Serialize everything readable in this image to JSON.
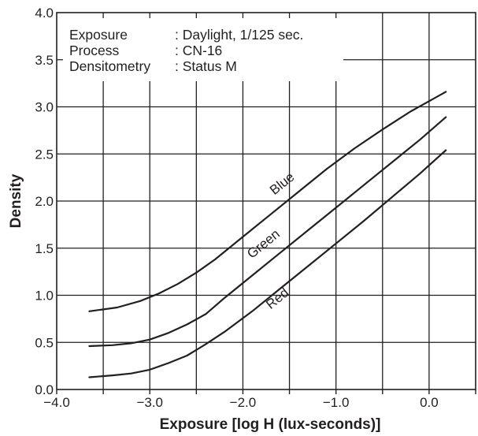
{
  "chart_data": {
    "type": "line",
    "xlabel": "Exposure [log H (lux-seconds)]",
    "ylabel": "Density",
    "xlim": [
      -4.0,
      0.5
    ],
    "ylim": [
      0.0,
      4.0
    ],
    "x_ticks": [
      -4.0,
      -3.0,
      -2.0,
      -1.0,
      0.0
    ],
    "x_tick_labels": [
      "−4.0",
      "−3.0",
      "−2.0",
      "−1.0",
      "0.0"
    ],
    "y_ticks": [
      0.0,
      0.5,
      1.0,
      1.5,
      2.0,
      2.5,
      3.0,
      3.5,
      4.0
    ],
    "y_tick_labels": [
      "0.0",
      "0.5",
      "1.0",
      "1.5",
      "2.0",
      "2.5",
      "3.0",
      "3.5",
      "4.0"
    ],
    "grid": true,
    "info": {
      "rows": [
        {
          "key": "Exposure",
          "value": ": Daylight, 1/125 sec."
        },
        {
          "key": "Process",
          "value": ": CN-16"
        },
        {
          "key": "Densitometry",
          "value": ": Status M"
        }
      ]
    },
    "series": [
      {
        "name": "Blue",
        "x": [
          -3.65,
          -3.35,
          -3.1,
          -2.9,
          -2.7,
          -2.5,
          -2.3,
          -2.0,
          -1.7,
          -1.4,
          -1.1,
          -0.8,
          -0.5,
          -0.2,
          0.0,
          0.18
        ],
        "y": [
          0.83,
          0.87,
          0.94,
          1.02,
          1.12,
          1.24,
          1.38,
          1.62,
          1.86,
          2.1,
          2.34,
          2.56,
          2.76,
          2.95,
          3.06,
          3.16
        ]
      },
      {
        "name": "Green",
        "x": [
          -3.65,
          -3.4,
          -3.2,
          -3.0,
          -2.8,
          -2.6,
          -2.4,
          -2.2,
          -1.9,
          -1.6,
          -1.3,
          -1.0,
          -0.7,
          -0.4,
          -0.1,
          0.18
        ],
        "y": [
          0.46,
          0.47,
          0.49,
          0.53,
          0.6,
          0.69,
          0.8,
          0.97,
          1.21,
          1.45,
          1.69,
          1.93,
          2.17,
          2.41,
          2.65,
          2.89
        ]
      },
      {
        "name": "Red",
        "x": [
          -3.65,
          -3.4,
          -3.2,
          -3.0,
          -2.8,
          -2.6,
          -2.4,
          -2.2,
          -1.9,
          -1.6,
          -1.3,
          -1.0,
          -0.7,
          -0.4,
          -0.1,
          0.18
        ],
        "y": [
          0.13,
          0.15,
          0.17,
          0.21,
          0.28,
          0.36,
          0.48,
          0.61,
          0.83,
          1.07,
          1.31,
          1.55,
          1.79,
          2.04,
          2.29,
          2.54
        ]
      }
    ]
  }
}
